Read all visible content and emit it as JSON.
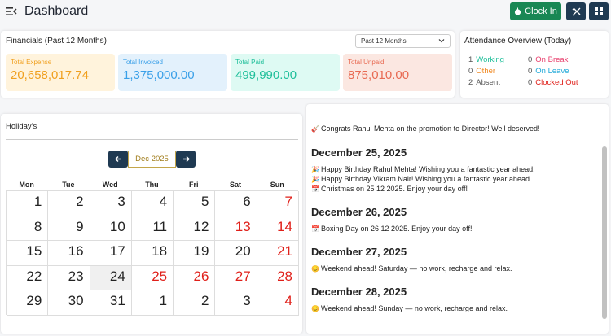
{
  "header": {
    "title": "Dashboard",
    "clock_in_label": "Clock In",
    "clock_in_color": "#198754",
    "dark_button_color": "#1f3a52"
  },
  "financials": {
    "title": "Financials (Past 12 Months)",
    "period_select": "Past 12 Months",
    "stats": [
      {
        "label": "Total Expense",
        "value": "20,658,017.74",
        "color": "#f0a020"
      },
      {
        "label": "Total Invoiced",
        "value": "1,375,000.00",
        "color": "#3aa0e8"
      },
      {
        "label": "Total Paid",
        "value": "499,990.00",
        "color": "#1fbf9a"
      },
      {
        "label": "Total Unpaid",
        "value": "875,010.00",
        "color": "#e86a52"
      }
    ]
  },
  "attendance": {
    "title": "Attendance Overview (Today)",
    "items": [
      {
        "count": "1",
        "label": "Working",
        "color": "#1fbf9a"
      },
      {
        "count": "0",
        "label": "On Break",
        "color": "#e83e6c"
      },
      {
        "count": "0",
        "label": "Other",
        "color": "#f08a24"
      },
      {
        "count": "0",
        "label": "On Leave",
        "color": "#1fa8d8"
      },
      {
        "count": "2",
        "label": "Absent",
        "color": "#555555"
      },
      {
        "count": "0",
        "label": "Clocked Out",
        "color": "#e0201a"
      }
    ]
  },
  "holidays": {
    "title": "Holiday's",
    "month_label": "Dec 2025",
    "weekdays": [
      "Mon",
      "Tue",
      "Wed",
      "Thu",
      "Fri",
      "Sat",
      "Sun"
    ],
    "weeks": [
      [
        "1",
        "2",
        "3",
        "4",
        "5",
        "6",
        "7"
      ],
      [
        "8",
        "9",
        "10",
        "11",
        "12",
        "13",
        "14"
      ],
      [
        "15",
        "16",
        "17",
        "18",
        "19",
        "20",
        "21"
      ],
      [
        "22",
        "23",
        "24",
        "25",
        "26",
        "27",
        "28"
      ],
      [
        "29",
        "30",
        "31",
        "1",
        "2",
        "3",
        "4"
      ]
    ],
    "highlight_dates": [
      "7",
      "13",
      "14",
      "21",
      "25",
      "26",
      "27",
      "28",
      "4"
    ],
    "today": "24"
  },
  "announcements": {
    "top_line": "Congrats Rahul Mehta on the promotion to Director! Well deserved!",
    "groups": [
      {
        "date": "December 25, 2025",
        "items": [
          {
            "icon": "party-icon",
            "text": "Happy Birthday Rahul Mehta! Wishing you a fantastic year ahead."
          },
          {
            "icon": "party-icon",
            "text": "Happy Birthday Vikram Nair! Wishing you a fantastic year ahead."
          },
          {
            "icon": "calendar-icon",
            "text": "Christmas on 25 12 2025. Enjoy your day off!"
          }
        ]
      },
      {
        "date": "December 26, 2025",
        "items": [
          {
            "icon": "calendar-icon",
            "text": "Boxing Day on 26 12 2025. Enjoy your day off!"
          }
        ]
      },
      {
        "date": "December 27, 2025",
        "items": [
          {
            "icon": "weekend-icon",
            "text": "Weekend ahead! Saturday — no work, recharge and relax."
          }
        ]
      },
      {
        "date": "December 28, 2025",
        "items": [
          {
            "icon": "weekend-icon",
            "text": "Weekend ahead! Sunday — no work, recharge and relax."
          }
        ]
      }
    ]
  }
}
